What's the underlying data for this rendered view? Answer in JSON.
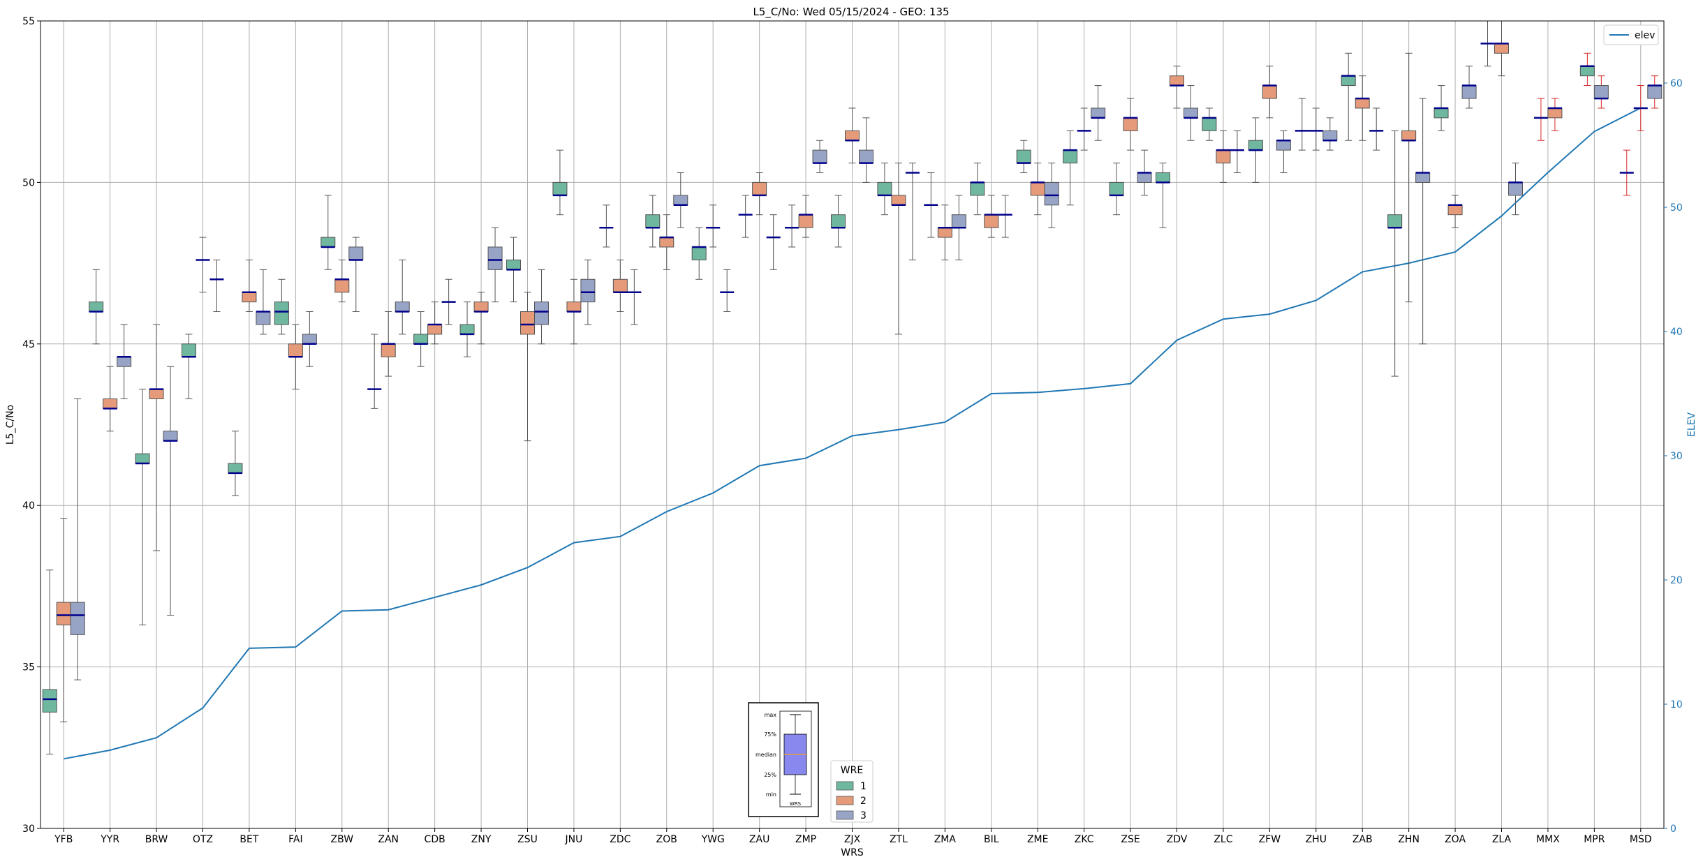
{
  "chart_data": {
    "type": "box",
    "title": "L5_C/No: Wed 05/15/2024 - GEO: 135",
    "xlabel": "WRS",
    "ylabel": "L5_C/No",
    "y2label": "ELEV",
    "ylim": [
      30,
      55
    ],
    "y2lim": [
      0,
      65
    ],
    "yticks": [
      30,
      35,
      40,
      45,
      50,
      55
    ],
    "y2ticks": [
      0,
      10,
      20,
      30,
      40,
      50,
      60
    ],
    "grid": true,
    "categories": [
      "YFB",
      "YYR",
      "BRW",
      "OTZ",
      "BET",
      "FAI",
      "ZBW",
      "ZAN",
      "CDB",
      "ZNY",
      "ZSU",
      "JNU",
      "ZDC",
      "ZOB",
      "YWG",
      "ZAU",
      "ZMP",
      "ZJX",
      "ZTL",
      "ZMA",
      "BIL",
      "ZME",
      "ZKC",
      "ZSE",
      "ZDV",
      "ZLC",
      "ZFW",
      "ZHU",
      "ZAB",
      "ZHN",
      "ZOA",
      "ZLA",
      "MMX",
      "MPR",
      "MSD"
    ],
    "wre_colors": {
      "1": "#6fb79e",
      "2": "#e59a79",
      "3": "#97a4c6"
    },
    "legend_wre": {
      "title": "WRE",
      "items": [
        "1",
        "2",
        "3"
      ],
      "placement": "lower-center"
    },
    "legend_elev": {
      "items": [
        "elev"
      ],
      "placement": "top-right"
    },
    "elev_line": {
      "name": "elev",
      "color": "#1f77b4",
      "values": [
        5.6,
        6.3,
        7.3,
        9.7,
        14.5,
        14.6,
        17.5,
        17.6,
        18.6,
        19.6,
        21.0,
        23.0,
        23.5,
        25.5,
        27.0,
        29.2,
        29.8,
        31.6,
        32.1,
        32.7,
        35.0,
        35.1,
        35.4,
        35.8,
        39.3,
        41.0,
        41.4,
        42.5,
        44.8,
        45.5,
        46.4,
        49.3,
        52.8,
        56.1,
        58.0
      ]
    },
    "boxes": [
      {
        "station": "YFB",
        "wre": 1,
        "whislo": 32.3,
        "q1": 33.6,
        "med": 34.0,
        "q3": 34.3,
        "whishi": 38.0
      },
      {
        "station": "YFB",
        "wre": 2,
        "whislo": 33.3,
        "q1": 36.3,
        "med": 36.6,
        "q3": 37.0,
        "whishi": 39.6
      },
      {
        "station": "YFB",
        "wre": 3,
        "whislo": 34.6,
        "q1": 36.0,
        "med": 36.6,
        "q3": 37.0,
        "whishi": 43.3
      },
      {
        "station": "YYR",
        "wre": 1,
        "whislo": 45.0,
        "q1": 46.0,
        "med": 46.0,
        "q3": 46.3,
        "whishi": 47.3
      },
      {
        "station": "YYR",
        "wre": 2,
        "whislo": 42.3,
        "q1": 43.0,
        "med": 43.0,
        "q3": 43.3,
        "whishi": 44.3
      },
      {
        "station": "YYR",
        "wre": 3,
        "whislo": 43.3,
        "q1": 44.3,
        "med": 44.6,
        "q3": 44.6,
        "whishi": 45.6
      },
      {
        "station": "BRW",
        "wre": 1,
        "whislo": 36.3,
        "q1": 41.3,
        "med": 41.3,
        "q3": 41.6,
        "whishi": 43.6
      },
      {
        "station": "BRW",
        "wre": 2,
        "whislo": 38.6,
        "q1": 43.3,
        "med": 43.6,
        "q3": 43.6,
        "whishi": 45.6
      },
      {
        "station": "BRW",
        "wre": 3,
        "whislo": 36.6,
        "q1": 42.0,
        "med": 42.0,
        "q3": 42.3,
        "whishi": 44.3
      },
      {
        "station": "OTZ",
        "wre": 1,
        "whislo": 43.3,
        "q1": 44.6,
        "med": 44.6,
        "q3": 45.0,
        "whishi": 45.3
      },
      {
        "station": "OTZ",
        "wre": 2,
        "whislo": 46.6,
        "q1": 47.6,
        "med": 47.6,
        "q3": 47.6,
        "whishi": 48.3
      },
      {
        "station": "OTZ",
        "wre": 3,
        "whislo": 46.0,
        "q1": 47.0,
        "med": 47.0,
        "q3": 47.0,
        "whishi": 47.6
      },
      {
        "station": "BET",
        "wre": 1,
        "whislo": 40.3,
        "q1": 41.0,
        "med": 41.0,
        "q3": 41.3,
        "whishi": 42.3
      },
      {
        "station": "BET",
        "wre": 2,
        "whislo": 46.0,
        "q1": 46.3,
        "med": 46.6,
        "q3": 46.6,
        "whishi": 47.6
      },
      {
        "station": "BET",
        "wre": 3,
        "whislo": 45.3,
        "q1": 45.6,
        "med": 46.0,
        "q3": 46.0,
        "whishi": 47.3
      },
      {
        "station": "FAI",
        "wre": 1,
        "whislo": 45.3,
        "q1": 45.6,
        "med": 46.0,
        "q3": 46.3,
        "whishi": 47.0
      },
      {
        "station": "FAI",
        "wre": 2,
        "whislo": 43.6,
        "q1": 44.6,
        "med": 44.6,
        "q3": 45.0,
        "whishi": 45.6
      },
      {
        "station": "FAI",
        "wre": 3,
        "whislo": 44.3,
        "q1": 45.0,
        "med": 45.0,
        "q3": 45.3,
        "whishi": 46.0
      },
      {
        "station": "ZBW",
        "wre": 1,
        "whislo": 47.3,
        "q1": 48.0,
        "med": 48.0,
        "q3": 48.3,
        "whishi": 49.6
      },
      {
        "station": "ZBW",
        "wre": 2,
        "whislo": 46.3,
        "q1": 46.6,
        "med": 47.0,
        "q3": 47.0,
        "whishi": 47.6
      },
      {
        "station": "ZBW",
        "wre": 3,
        "whislo": 46.0,
        "q1": 47.6,
        "med": 47.6,
        "q3": 48.0,
        "whishi": 48.3
      },
      {
        "station": "ZAN",
        "wre": 1,
        "whislo": 43.0,
        "q1": 43.6,
        "med": 43.6,
        "q3": 43.6,
        "whishi": 45.3
      },
      {
        "station": "ZAN",
        "wre": 2,
        "whislo": 44.0,
        "q1": 44.6,
        "med": 45.0,
        "q3": 45.0,
        "whishi": 46.0
      },
      {
        "station": "ZAN",
        "wre": 3,
        "whislo": 45.3,
        "q1": 46.0,
        "med": 46.0,
        "q3": 46.3,
        "whishi": 47.6
      },
      {
        "station": "CDB",
        "wre": 1,
        "whislo": 44.3,
        "q1": 45.0,
        "med": 45.0,
        "q3": 45.3,
        "whishi": 46.0
      },
      {
        "station": "CDB",
        "wre": 2,
        "whislo": 45.0,
        "q1": 45.3,
        "med": 45.6,
        "q3": 45.6,
        "whishi": 46.3
      },
      {
        "station": "CDB",
        "wre": 3,
        "whislo": 45.6,
        "q1": 46.3,
        "med": 46.3,
        "q3": 46.3,
        "whishi": 47.0
      },
      {
        "station": "ZNY",
        "wre": 1,
        "whislo": 44.6,
        "q1": 45.3,
        "med": 45.3,
        "q3": 45.6,
        "whishi": 46.3
      },
      {
        "station": "ZNY",
        "wre": 2,
        "whislo": 45.0,
        "q1": 46.0,
        "med": 46.0,
        "q3": 46.3,
        "whishi": 46.6
      },
      {
        "station": "ZNY",
        "wre": 3,
        "whislo": 46.3,
        "q1": 47.3,
        "med": 47.6,
        "q3": 48.0,
        "whishi": 48.6
      },
      {
        "station": "ZSU",
        "wre": 1,
        "whislo": 46.3,
        "q1": 47.3,
        "med": 47.3,
        "q3": 47.6,
        "whishi": 48.3
      },
      {
        "station": "ZSU",
        "wre": 2,
        "whislo": 42.0,
        "q1": 45.3,
        "med": 45.6,
        "q3": 46.0,
        "whishi": 46.6
      },
      {
        "station": "ZSU",
        "wre": 3,
        "whislo": 45.0,
        "q1": 45.6,
        "med": 46.0,
        "q3": 46.3,
        "whishi": 47.3
      },
      {
        "station": "JNU",
        "wre": 1,
        "whislo": 49.0,
        "q1": 49.6,
        "med": 49.6,
        "q3": 50.0,
        "whishi": 51.0
      },
      {
        "station": "JNU",
        "wre": 2,
        "whislo": 45.0,
        "q1": 46.0,
        "med": 46.0,
        "q3": 46.3,
        "whishi": 47.0
      },
      {
        "station": "JNU",
        "wre": 3,
        "whislo": 45.6,
        "q1": 46.3,
        "med": 46.6,
        "q3": 47.0,
        "whishi": 47.6
      },
      {
        "station": "ZDC",
        "wre": 1,
        "whislo": 48.0,
        "q1": 48.6,
        "med": 48.6,
        "q3": 48.6,
        "whishi": 49.3
      },
      {
        "station": "ZDC",
        "wre": 2,
        "whislo": 46.0,
        "q1": 46.6,
        "med": 46.6,
        "q3": 47.0,
        "whishi": 47.6
      },
      {
        "station": "ZDC",
        "wre": 3,
        "whislo": 45.6,
        "q1": 46.6,
        "med": 46.6,
        "q3": 46.6,
        "whishi": 47.3
      },
      {
        "station": "ZOB",
        "wre": 1,
        "whislo": 48.0,
        "q1": 48.6,
        "med": 48.6,
        "q3": 49.0,
        "whishi": 49.6
      },
      {
        "station": "ZOB",
        "wre": 2,
        "whislo": 47.3,
        "q1": 48.0,
        "med": 48.3,
        "q3": 48.3,
        "whishi": 49.0
      },
      {
        "station": "ZOB",
        "wre": 3,
        "whislo": 48.6,
        "q1": 49.3,
        "med": 49.3,
        "q3": 49.6,
        "whishi": 50.3
      },
      {
        "station": "YWG",
        "wre": 1,
        "whislo": 47.0,
        "q1": 47.6,
        "med": 48.0,
        "q3": 48.0,
        "whishi": 48.6
      },
      {
        "station": "YWG",
        "wre": 2,
        "whislo": 48.0,
        "q1": 48.6,
        "med": 48.6,
        "q3": 48.6,
        "whishi": 49.3
      },
      {
        "station": "YWG",
        "wre": 3,
        "whislo": 46.0,
        "q1": 46.6,
        "med": 46.6,
        "q3": 46.6,
        "whishi": 47.3
      },
      {
        "station": "ZAU",
        "wre": 1,
        "whislo": 48.3,
        "q1": 49.0,
        "med": 49.0,
        "q3": 49.0,
        "whishi": 49.6
      },
      {
        "station": "ZAU",
        "wre": 2,
        "whislo": 49.0,
        "q1": 49.6,
        "med": 49.6,
        "q3": 50.0,
        "whishi": 50.3
      },
      {
        "station": "ZAU",
        "wre": 3,
        "whislo": 47.3,
        "q1": 48.3,
        "med": 48.3,
        "q3": 48.3,
        "whishi": 49.0
      },
      {
        "station": "ZMP",
        "wre": 1,
        "whislo": 48.0,
        "q1": 48.6,
        "med": 48.6,
        "q3": 48.6,
        "whishi": 49.3
      },
      {
        "station": "ZMP",
        "wre": 2,
        "whislo": 48.3,
        "q1": 48.6,
        "med": 49.0,
        "q3": 49.0,
        "whishi": 49.6
      },
      {
        "station": "ZMP",
        "wre": 3,
        "whislo": 50.3,
        "q1": 50.6,
        "med": 50.6,
        "q3": 51.0,
        "whishi": 51.3
      },
      {
        "station": "ZJX",
        "wre": 1,
        "whislo": 48.0,
        "q1": 48.6,
        "med": 48.6,
        "q3": 49.0,
        "whishi": 49.6
      },
      {
        "station": "ZJX",
        "wre": 2,
        "whislo": 50.6,
        "q1": 51.3,
        "med": 51.3,
        "q3": 51.6,
        "whishi": 52.3
      },
      {
        "station": "ZJX",
        "wre": 3,
        "whislo": 50.0,
        "q1": 50.6,
        "med": 50.6,
        "q3": 51.0,
        "whishi": 52.0
      },
      {
        "station": "ZTL",
        "wre": 1,
        "whislo": 49.0,
        "q1": 49.6,
        "med": 49.6,
        "q3": 50.0,
        "whishi": 50.6
      },
      {
        "station": "ZTL",
        "wre": 2,
        "whislo": 45.3,
        "q1": 49.3,
        "med": 49.3,
        "q3": 49.6,
        "whishi": 50.6
      },
      {
        "station": "ZTL",
        "wre": 3,
        "whislo": 47.6,
        "q1": 50.3,
        "med": 50.3,
        "q3": 50.3,
        "whishi": 50.6
      },
      {
        "station": "ZMA",
        "wre": 1,
        "whislo": 48.3,
        "q1": 49.3,
        "med": 49.3,
        "q3": 49.3,
        "whishi": 50.3
      },
      {
        "station": "ZMA",
        "wre": 2,
        "whislo": 47.6,
        "q1": 48.3,
        "med": 48.6,
        "q3": 48.6,
        "whishi": 49.3
      },
      {
        "station": "ZMA",
        "wre": 3,
        "whislo": 47.6,
        "q1": 48.6,
        "med": 48.6,
        "q3": 49.0,
        "whishi": 49.6
      },
      {
        "station": "BIL",
        "wre": 1,
        "whislo": 49.0,
        "q1": 49.6,
        "med": 50.0,
        "q3": 50.0,
        "whishi": 50.6
      },
      {
        "station": "BIL",
        "wre": 2,
        "whislo": 48.3,
        "q1": 48.6,
        "med": 49.0,
        "q3": 49.0,
        "whishi": 49.6
      },
      {
        "station": "BIL",
        "wre": 3,
        "whislo": 48.3,
        "q1": 49.0,
        "med": 49.0,
        "q3": 49.0,
        "whishi": 49.6
      },
      {
        "station": "ZME",
        "wre": 1,
        "whislo": 50.3,
        "q1": 50.6,
        "med": 50.6,
        "q3": 51.0,
        "whishi": 51.3
      },
      {
        "station": "ZME",
        "wre": 2,
        "whislo": 49.0,
        "q1": 49.6,
        "med": 50.0,
        "q3": 50.0,
        "whishi": 50.6
      },
      {
        "station": "ZME",
        "wre": 3,
        "whislo": 48.6,
        "q1": 49.3,
        "med": 49.6,
        "q3": 50.0,
        "whishi": 50.6
      },
      {
        "station": "ZKC",
        "wre": 1,
        "whislo": 49.3,
        "q1": 50.6,
        "med": 51.0,
        "q3": 51.0,
        "whishi": 51.6
      },
      {
        "station": "ZKC",
        "wre": 2,
        "whislo": 51.0,
        "q1": 51.6,
        "med": 51.6,
        "q3": 51.6,
        "whishi": 52.3
      },
      {
        "station": "ZKC",
        "wre": 3,
        "whislo": 51.3,
        "q1": 52.0,
        "med": 52.0,
        "q3": 52.3,
        "whishi": 53.0
      },
      {
        "station": "ZSE",
        "wre": 1,
        "whislo": 49.0,
        "q1": 49.6,
        "med": 49.6,
        "q3": 50.0,
        "whishi": 50.6
      },
      {
        "station": "ZSE",
        "wre": 2,
        "whislo": 51.0,
        "q1": 51.6,
        "med": 52.0,
        "q3": 52.0,
        "whishi": 52.6
      },
      {
        "station": "ZSE",
        "wre": 3,
        "whislo": 49.6,
        "q1": 50.0,
        "med": 50.3,
        "q3": 50.3,
        "whishi": 51.0
      },
      {
        "station": "ZDV",
        "wre": 1,
        "whislo": 48.6,
        "q1": 50.0,
        "med": 50.0,
        "q3": 50.3,
        "whishi": 50.6
      },
      {
        "station": "ZDV",
        "wre": 2,
        "whislo": 52.3,
        "q1": 53.0,
        "med": 53.0,
        "q3": 53.3,
        "whishi": 53.6
      },
      {
        "station": "ZDV",
        "wre": 3,
        "whislo": 51.3,
        "q1": 52.0,
        "med": 52.0,
        "q3": 52.3,
        "whishi": 53.0
      },
      {
        "station": "ZLC",
        "wre": 1,
        "whislo": 51.3,
        "q1": 51.6,
        "med": 52.0,
        "q3": 52.0,
        "whishi": 52.3
      },
      {
        "station": "ZLC",
        "wre": 2,
        "whislo": 50.0,
        "q1": 50.6,
        "med": 51.0,
        "q3": 51.0,
        "whishi": 51.6
      },
      {
        "station": "ZLC",
        "wre": 3,
        "whislo": 50.3,
        "q1": 51.0,
        "med": 51.0,
        "q3": 51.0,
        "whishi": 51.6
      },
      {
        "station": "ZFW",
        "wre": 1,
        "whislo": 50.0,
        "q1": 51.0,
        "med": 51.0,
        "q3": 51.3,
        "whishi": 52.0
      },
      {
        "station": "ZFW",
        "wre": 2,
        "whislo": 52.0,
        "q1": 52.6,
        "med": 53.0,
        "q3": 53.0,
        "whishi": 53.6
      },
      {
        "station": "ZFW",
        "wre": 3,
        "whislo": 50.3,
        "q1": 51.0,
        "med": 51.3,
        "q3": 51.3,
        "whishi": 51.6
      },
      {
        "station": "ZHU",
        "wre": 1,
        "whislo": 51.0,
        "q1": 51.6,
        "med": 51.6,
        "q3": 51.6,
        "whishi": 52.6
      },
      {
        "station": "ZHU",
        "wre": 2,
        "whislo": 51.0,
        "q1": 51.6,
        "med": 51.6,
        "q3": 51.6,
        "whishi": 52.3
      },
      {
        "station": "ZHU",
        "wre": 3,
        "whislo": 51.0,
        "q1": 51.3,
        "med": 51.3,
        "q3": 51.6,
        "whishi": 52.0
      },
      {
        "station": "ZAB",
        "wre": 1,
        "whislo": 51.3,
        "q1": 53.0,
        "med": 53.3,
        "q3": 53.3,
        "whishi": 54.0
      },
      {
        "station": "ZAB",
        "wre": 2,
        "whislo": 51.3,
        "q1": 52.3,
        "med": 52.6,
        "q3": 52.6,
        "whishi": 53.3
      },
      {
        "station": "ZAB",
        "wre": 3,
        "whislo": 51.0,
        "q1": 51.6,
        "med": 51.6,
        "q3": 51.6,
        "whishi": 52.3
      },
      {
        "station": "ZHN",
        "wre": 1,
        "whislo": 44.0,
        "q1": 48.6,
        "med": 48.6,
        "q3": 49.0,
        "whishi": 51.6
      },
      {
        "station": "ZHN",
        "wre": 2,
        "whislo": 46.3,
        "q1": 51.3,
        "med": 51.3,
        "q3": 51.6,
        "whishi": 54.0
      },
      {
        "station": "ZHN",
        "wre": 3,
        "whislo": 45.0,
        "q1": 50.0,
        "med": 50.3,
        "q3": 50.3,
        "whishi": 52.6
      },
      {
        "station": "ZOA",
        "wre": 1,
        "whislo": 51.6,
        "q1": 52.0,
        "med": 52.3,
        "q3": 52.3,
        "whishi": 53.0
      },
      {
        "station": "ZOA",
        "wre": 2,
        "whislo": 48.6,
        "q1": 49.0,
        "med": 49.3,
        "q3": 49.3,
        "whishi": 49.6
      },
      {
        "station": "ZOA",
        "wre": 3,
        "whislo": 52.3,
        "q1": 52.6,
        "med": 53.0,
        "q3": 53.0,
        "whishi": 53.6
      },
      {
        "station": "ZLA",
        "wre": 1,
        "whislo": 53.6,
        "q1": 54.3,
        "med": 54.3,
        "q3": 54.3,
        "whishi": 55.0
      },
      {
        "station": "ZLA",
        "wre": 2,
        "whislo": 53.3,
        "q1": 54.0,
        "med": 54.3,
        "q3": 54.3,
        "whishi": 55.0
      },
      {
        "station": "ZLA",
        "wre": 3,
        "whislo": 49.0,
        "q1": 49.6,
        "med": 50.0,
        "q3": 50.0,
        "whishi": 50.6
      },
      {
        "station": "MMX",
        "wre": 1,
        "whislo": 51.3,
        "q1": 52.0,
        "med": 52.0,
        "q3": 52.0,
        "whishi": 52.6
      },
      {
        "station": "MMX",
        "wre": 2,
        "whislo": 51.6,
        "q1": 52.0,
        "med": 52.3,
        "q3": 52.3,
        "whishi": 52.6
      },
      {
        "station": "MPR",
        "wre": 1,
        "whislo": 53.0,
        "q1": 53.3,
        "med": 53.6,
        "q3": 53.6,
        "whishi": 54.0
      },
      {
        "station": "MPR",
        "wre": 3,
        "whislo": 52.3,
        "q1": 52.6,
        "med": 52.6,
        "q3": 53.0,
        "whishi": 53.3
      },
      {
        "station": "MSD",
        "wre": 2,
        "whislo": 49.6,
        "q1": 50.3,
        "med": 50.3,
        "q3": 50.3,
        "whishi": 51.0
      },
      {
        "station": "MSD",
        "wre": 2,
        "whislo": 51.6,
        "q1": 52.3,
        "med": 52.3,
        "q3": 52.3,
        "whishi": 53.0
      },
      {
        "station": "MSD",
        "wre": 3,
        "whislo": 52.3,
        "q1": 52.6,
        "med": 53.0,
        "q3": 53.0,
        "whishi": 53.3
      }
    ],
    "key_box": {
      "labels": [
        "max",
        "75%",
        "median",
        "25%",
        "min"
      ],
      "xtick": "WRS",
      "fill": "#8888ee",
      "median_color": "#e59a40"
    }
  }
}
